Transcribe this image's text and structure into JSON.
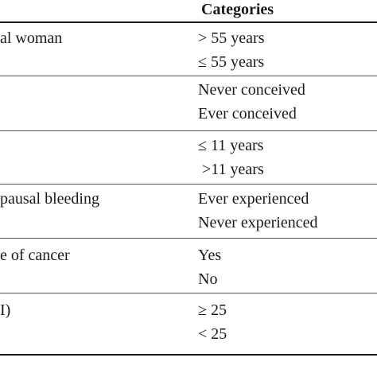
{
  "table": {
    "header": {
      "col1": "",
      "col2": "Categories"
    },
    "rows": [
      {
        "variable": "al woman",
        "categories": [
          "> 55 years",
          "≤ 55 years"
        ]
      },
      {
        "variable": "",
        "categories": [
          "Never conceived",
          "Ever conceived"
        ]
      },
      {
        "variable": "",
        "categories": [
          "≤ 11 years",
          " >11 years"
        ]
      },
      {
        "variable": "pausal bleeding",
        "categories": [
          "Ever experienced",
          "Never experienced"
        ]
      },
      {
        "variable": "e of cancer",
        "categories": [
          "Yes",
          "No"
        ]
      },
      {
        "variable": "I)",
        "categories": [
          "≥ 25",
          "< 25"
        ]
      }
    ]
  }
}
